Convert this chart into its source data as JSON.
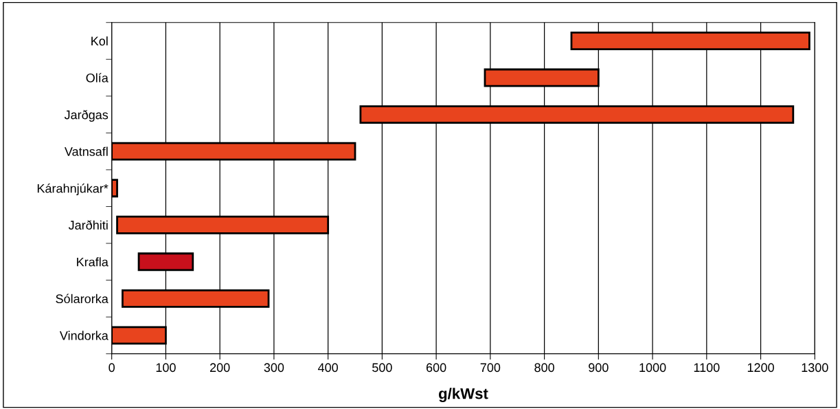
{
  "chart_data": {
    "type": "bar",
    "orientation": "horizontal",
    "xlabel": "g/kWst",
    "categories": [
      "Kol",
      "Olía",
      "Jarðgas",
      "Vatnsafl",
      "Kárahnjúkar*",
      "Jarðhiti",
      "Krafla",
      "Sólarorka",
      "Vindorka"
    ],
    "base": [
      850,
      690,
      460,
      0,
      0,
      10,
      50,
      20,
      0
    ],
    "values": [
      440,
      210,
      800,
      450,
      10,
      390,
      100,
      270,
      100
    ],
    "colors": [
      "#e8441e",
      "#e8441e",
      "#e8441e",
      "#e8441e",
      "#e8441e",
      "#e8441e",
      "#c8101c",
      "#e8441e",
      "#e8441e"
    ],
    "xlim": [
      0,
      1300
    ],
    "xticks": [
      0,
      100,
      200,
      300,
      400,
      500,
      600,
      700,
      800,
      900,
      1000,
      1100,
      1200,
      1300
    ],
    "grid": "x",
    "legend": false
  }
}
